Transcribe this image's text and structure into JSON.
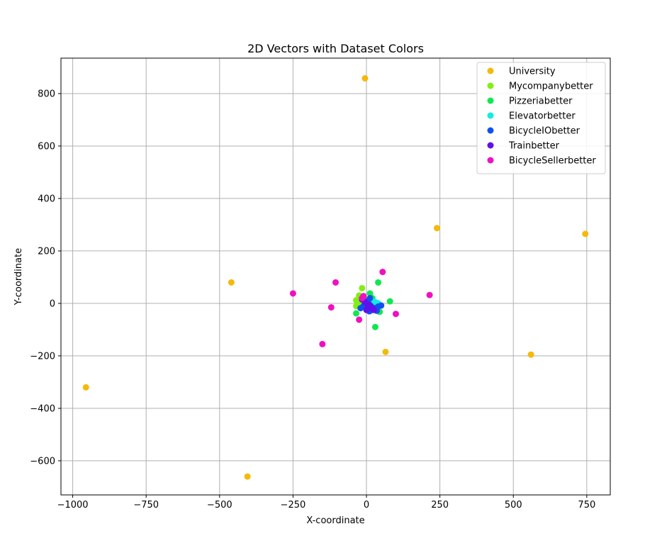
{
  "chart_data": {
    "type": "scatter",
    "title": "2D Vectors with Dataset Colors",
    "xlabel": "X-coordinate",
    "ylabel": "Y-coordinate",
    "xlim": [
      -1040,
      830
    ],
    "ylim": [
      -730,
      935
    ],
    "xticks": [
      -1000,
      -750,
      -500,
      -250,
      0,
      250,
      500,
      750
    ],
    "yticks": [
      -600,
      -400,
      -200,
      0,
      200,
      400,
      600,
      800
    ],
    "xtick_labels": [
      "−1000",
      "−750",
      "−500",
      "−250",
      "0",
      "250",
      "500",
      "750"
    ],
    "ytick_labels": [
      "−600",
      "−400",
      "−200",
      "0",
      "200",
      "400",
      "600",
      "800"
    ],
    "grid": true,
    "legend_position": "top-right",
    "series": [
      {
        "name": "University",
        "color": "#f5b90a",
        "points": [
          [
            -5,
            858
          ],
          [
            240,
            287
          ],
          [
            745,
            265
          ],
          [
            -460,
            80
          ],
          [
            65,
            -185
          ],
          [
            560,
            -195
          ],
          [
            -955,
            -320
          ],
          [
            -405,
            -660
          ]
        ]
      },
      {
        "name": "Mycompanybetter",
        "color": "#80f010",
        "points": [
          [
            -15,
            58
          ],
          [
            -25,
            30
          ],
          [
            -35,
            12
          ],
          [
            -35,
            -10
          ],
          [
            -20,
            5
          ],
          [
            -10,
            18
          ],
          [
            5,
            15
          ],
          [
            10,
            0
          ],
          [
            -5,
            -5
          ],
          [
            15,
            -10
          ]
        ]
      },
      {
        "name": "Pizzeriabetter",
        "color": "#10e850",
        "points": [
          [
            40,
            80
          ],
          [
            12,
            38
          ],
          [
            80,
            8
          ],
          [
            45,
            -32
          ],
          [
            30,
            -90
          ],
          [
            -35,
            -38
          ],
          [
            20,
            20
          ],
          [
            -5,
            5
          ],
          [
            25,
            0
          ]
        ]
      },
      {
        "name": "Elevatorbetter",
        "color": "#10ece0",
        "points": [
          [
            15,
            5
          ],
          [
            25,
            -15
          ],
          [
            35,
            -5
          ],
          [
            5,
            -20
          ],
          [
            40,
            0
          ],
          [
            20,
            10
          ],
          [
            30,
            5
          ]
        ]
      },
      {
        "name": "BicycleIObetter",
        "color": "#1050f0",
        "points": [
          [
            50,
            -8
          ],
          [
            35,
            -28
          ],
          [
            12,
            20
          ],
          [
            -20,
            -18
          ],
          [
            0,
            -5
          ],
          [
            10,
            -30
          ],
          [
            25,
            -20
          ],
          [
            40,
            -12
          ],
          [
            -10,
            -10
          ],
          [
            20,
            -25
          ],
          [
            5,
            10
          ],
          [
            30,
            -18
          ]
        ]
      },
      {
        "name": "Trainbetter",
        "color": "#6010e8",
        "points": [
          [
            15,
            -10
          ],
          [
            0,
            -25
          ],
          [
            -5,
            5
          ],
          [
            20,
            -20
          ],
          [
            -15,
            15
          ],
          [
            5,
            -15
          ],
          [
            25,
            -25
          ],
          [
            10,
            -5
          ]
        ]
      },
      {
        "name": "BicycleSellerbetter",
        "color": "#f010c0",
        "points": [
          [
            -10,
            28
          ],
          [
            -105,
            80
          ],
          [
            55,
            120
          ],
          [
            -250,
            38
          ],
          [
            215,
            32
          ],
          [
            -120,
            -15
          ],
          [
            100,
            -40
          ],
          [
            -25,
            -62
          ],
          [
            -150,
            -155
          ],
          [
            -15,
            20
          ]
        ]
      }
    ]
  }
}
